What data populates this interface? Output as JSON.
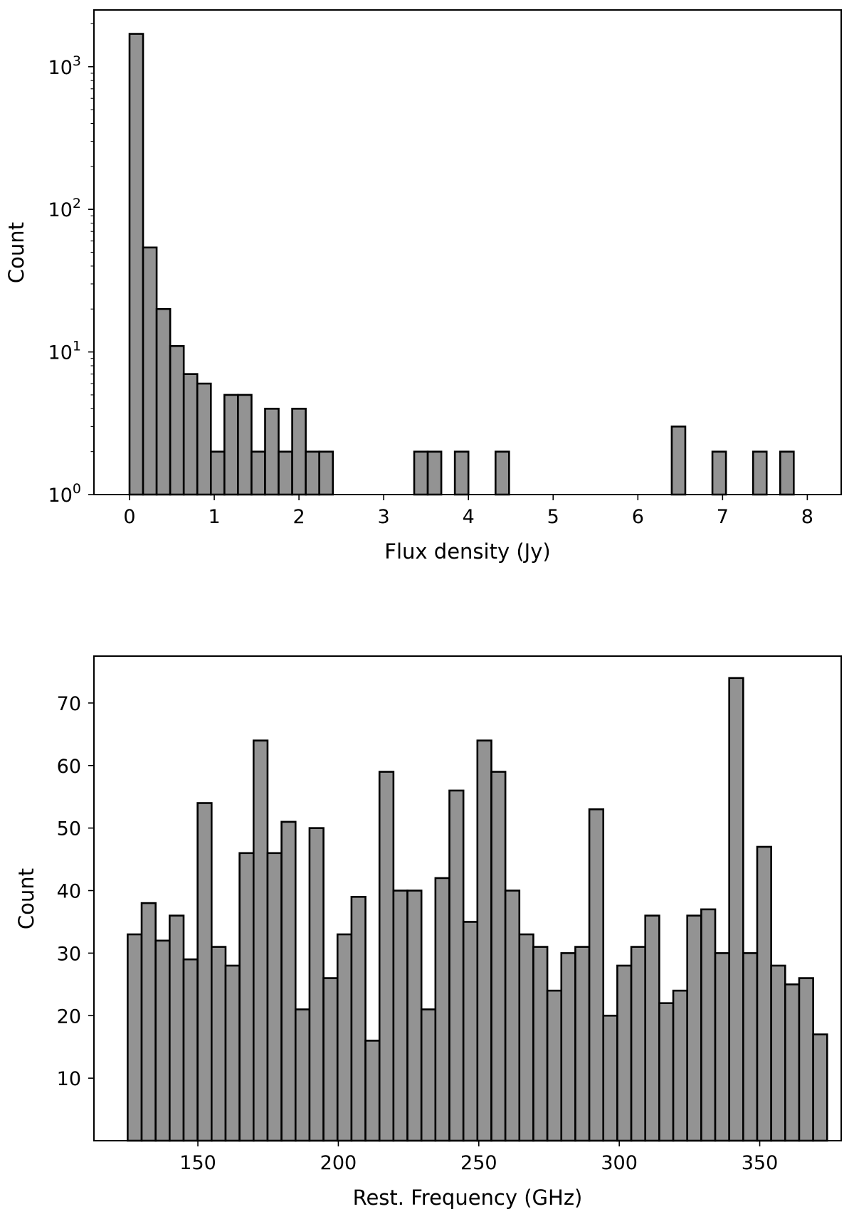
{
  "chart_data": [
    {
      "type": "bar",
      "subtype": "histogram",
      "scale_y": "log",
      "xlabel": "Flux density (Jy)",
      "ylabel": "Count",
      "xlim": [
        -0.42,
        8.4
      ],
      "ylim": [
        1,
        2500
      ],
      "x_ticks": [
        0,
        1,
        2,
        3,
        4,
        5,
        6,
        7,
        8
      ],
      "y_ticks": [
        {
          "value": 1,
          "base": "10",
          "exp": "0"
        },
        {
          "value": 10,
          "base": "10",
          "exp": "1"
        },
        {
          "value": 100,
          "base": "10",
          "exp": "2"
        },
        {
          "value": 1000,
          "base": "10",
          "exp": "3"
        }
      ],
      "bin_start": 0,
      "bin_width": 0.16,
      "values": [
        1700,
        54,
        20,
        11,
        7,
        6,
        2,
        5,
        5,
        2,
        4,
        2,
        4,
        2,
        2,
        0,
        0,
        0,
        0,
        0,
        0,
        2,
        2,
        0,
        2,
        0,
        0,
        2,
        0,
        0,
        0,
        0,
        0,
        0,
        0,
        0,
        0,
        0,
        0,
        0,
        3,
        0,
        0,
        2,
        0,
        0,
        2,
        0,
        2
      ]
    },
    {
      "type": "bar",
      "subtype": "histogram",
      "scale_y": "linear",
      "xlabel": "Rest. Frequency (GHz)",
      "ylabel": "Count",
      "xlim": [
        113,
        379
      ],
      "ylim": [
        0,
        77.5
      ],
      "x_ticks": [
        150,
        200,
        250,
        300,
        350
      ],
      "y_ticks": [
        10,
        20,
        30,
        40,
        50,
        60,
        70
      ],
      "bin_start": 125,
      "bin_width": 4.98,
      "values": [
        33,
        38,
        32,
        36,
        29,
        54,
        31,
        28,
        46,
        64,
        46,
        51,
        21,
        50,
        26,
        33,
        39,
        16,
        59,
        40,
        40,
        21,
        42,
        56,
        35,
        64,
        59,
        40,
        33,
        31,
        24,
        30,
        31,
        53,
        20,
        28,
        31,
        36,
        22,
        24,
        36,
        37,
        30,
        74,
        30,
        47,
        28,
        25,
        26,
        17
      ]
    }
  ]
}
